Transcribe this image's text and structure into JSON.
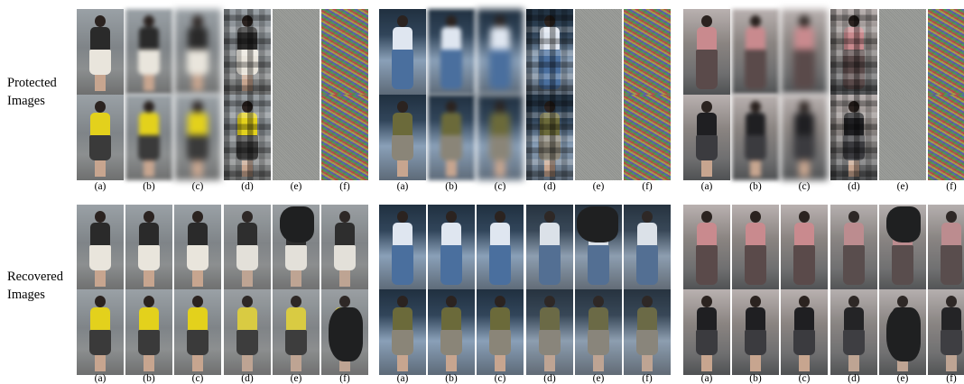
{
  "row_labels": {
    "protected": [
      "Protected",
      "Images"
    ],
    "recovered": [
      "Recovered",
      "Images"
    ]
  },
  "column_captions": [
    "(a)",
    "(b)",
    "(c)",
    "(d)",
    "(e)",
    "(f)"
  ],
  "colors": {
    "background": "#ffffff",
    "shirt_yellow": "#e3d11c",
    "skirt_white": "#e9e5dc",
    "shirt_pink": "#c98a8e"
  }
}
